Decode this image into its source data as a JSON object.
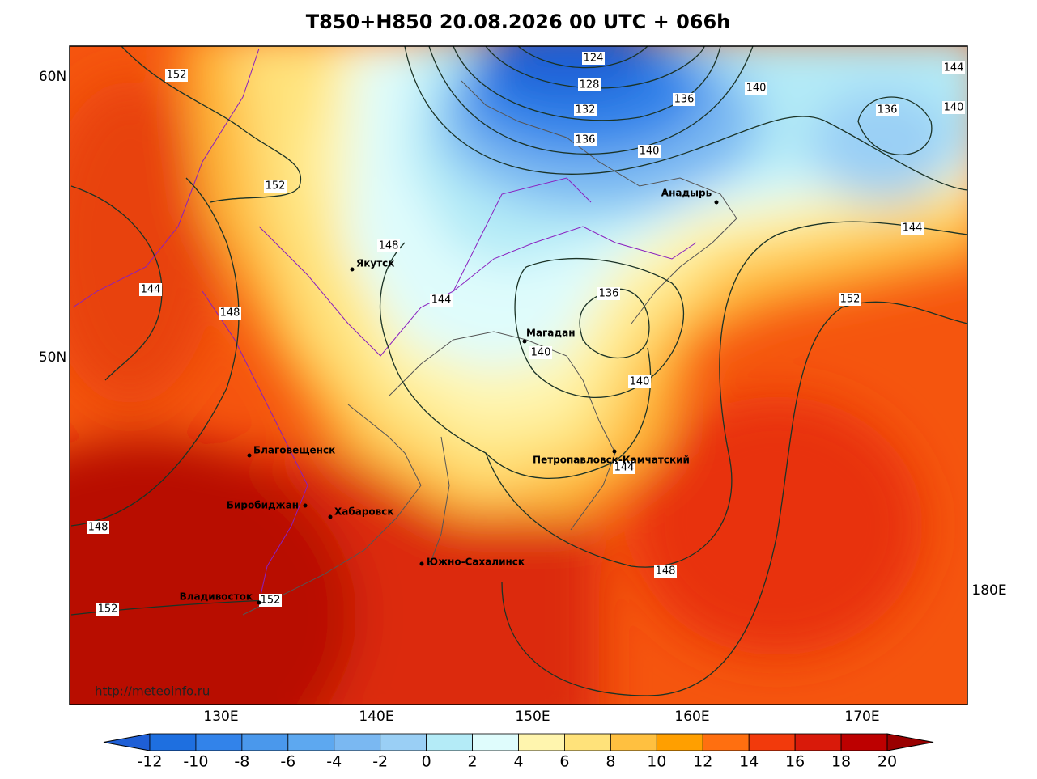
{
  "title": "T850+H850 20.08.2026 00 UTC + 066h",
  "lat_labels": [
    "60N",
    "50N"
  ],
  "lon_labels": [
    "130E",
    "140E",
    "150E",
    "160E",
    "170E",
    "180E"
  ],
  "cities": [
    "Якутск",
    "Магадан",
    "Анадырь",
    "Благовещенск",
    "Биробиджан",
    "Хабаровск",
    "Петропавловск-Камчатский",
    "Южно-Сахалинск",
    "Владивосток"
  ],
  "contour_labels": [
    152,
    124,
    128,
    132,
    136,
    136,
    140,
    140,
    144,
    140,
    136,
    152,
    144,
    148,
    144,
    148,
    144,
    136,
    152,
    140,
    140,
    144,
    148,
    148,
    152,
    152
  ],
  "watermark": "http://meteoinfo.ru",
  "colorbar": {
    "ticks": [
      -12,
      -10,
      -8,
      -6,
      -4,
      -2,
      0,
      2,
      4,
      6,
      8,
      10,
      12,
      14,
      16,
      18,
      20
    ],
    "colors": [
      "#1f5fd6",
      "#1e6fe0",
      "#3283ea",
      "#4a98ec",
      "#5da8f0",
      "#7ab8f2",
      "#9acff5",
      "#b4ebf7",
      "#dffcfc",
      "#fff5ae",
      "#ffe27a",
      "#ffc040",
      "#ff9f00",
      "#ff6f10",
      "#f23a0c",
      "#d91a0a",
      "#bd0000",
      "#9a0000"
    ]
  }
}
